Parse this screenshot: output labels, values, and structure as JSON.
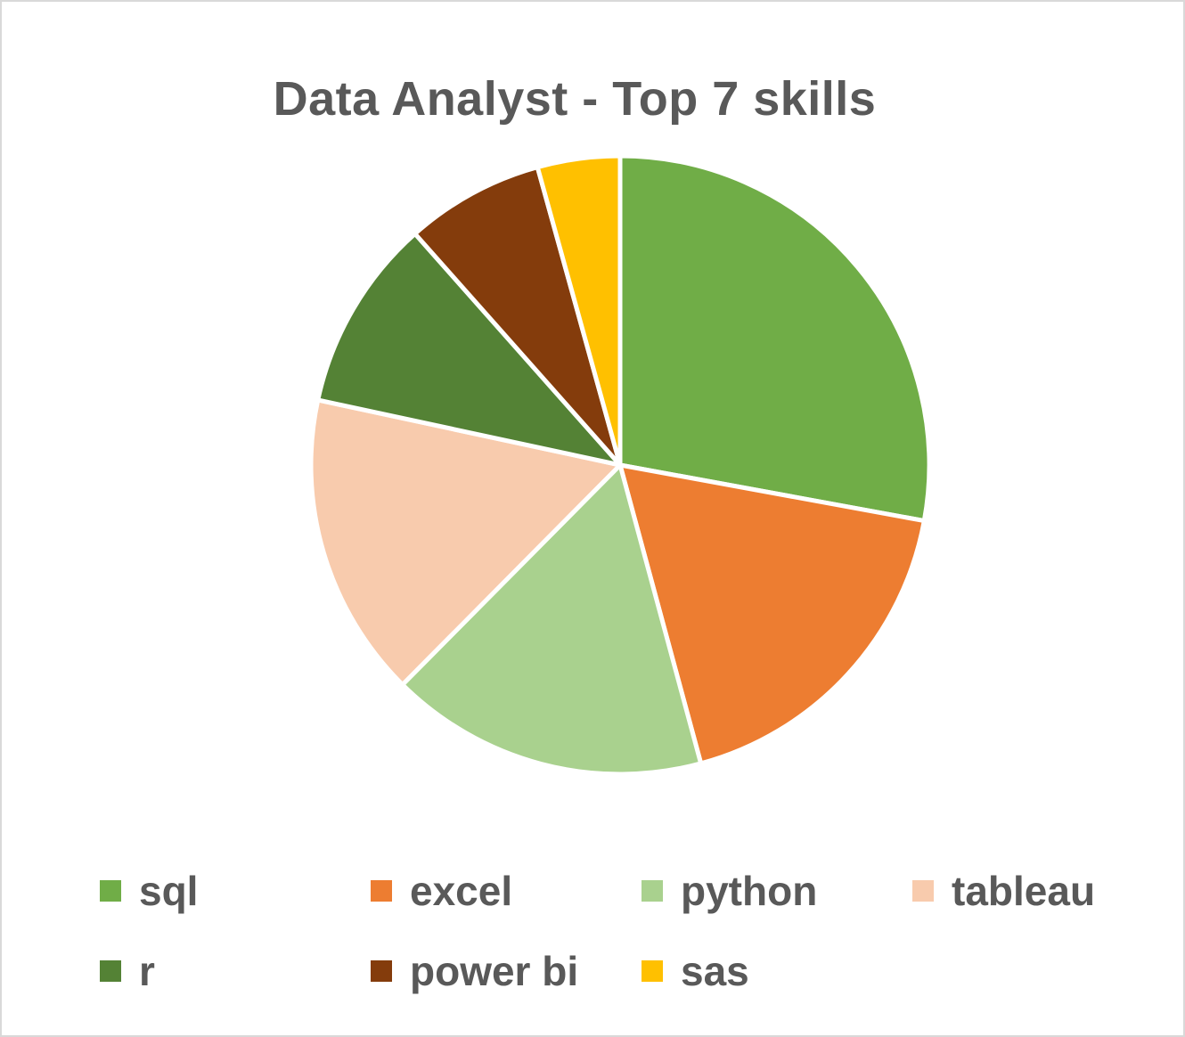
{
  "chart_data": {
    "type": "pie",
    "title": "Data Analyst - Top 7 skills",
    "start_angle": "12 o'clock",
    "direction": "clockwise",
    "legend_position": "bottom",
    "slices": [
      {
        "label": "sql",
        "value": 28.5,
        "color": "#70AD47"
      },
      {
        "label": "excel",
        "value": 18.3,
        "color": "#ED7D31"
      },
      {
        "label": "python",
        "value": 17.0,
        "color": "#A9D18E"
      },
      {
        "label": "tableau",
        "value": 16.3,
        "color": "#F8CBAD"
      },
      {
        "label": "r",
        "value": 10.3,
        "color": "#548235"
      },
      {
        "label": "power bi",
        "value": 7.4,
        "color": "#843C0C"
      },
      {
        "label": "sas",
        "value": 4.4,
        "color": "#FFC000"
      }
    ]
  }
}
